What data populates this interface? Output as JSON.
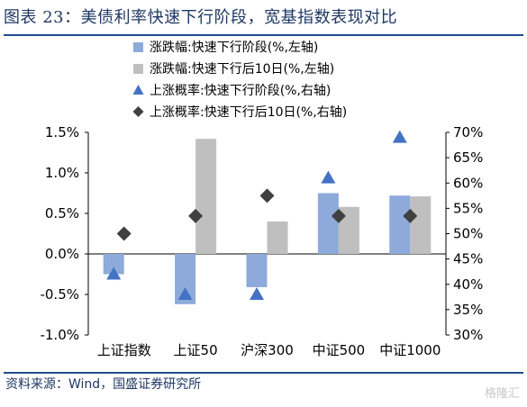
{
  "header": {
    "title": "图表 23：美债利率快速下行阶段，宽基指数表现对比",
    "source": "资料来源：Wind，国盛证券研究所",
    "watermark": "格隆汇"
  },
  "colors": {
    "bar_fast": "#8eaadb",
    "bar_after": "#bfbfbf",
    "tri": "#4472c4",
    "diamond": "#404040",
    "title": "#1f3864",
    "rule": "#1f4e8c"
  },
  "chart_data": {
    "type": "bar",
    "categories": [
      "上证指数",
      "上证50",
      "沪深300",
      "中证500",
      "中证1000"
    ],
    "series": [
      {
        "name": "涨跌幅:快速下行阶段(%,左轴)",
        "kind": "bar",
        "axis": "left",
        "values": [
          -0.25,
          -0.62,
          -0.41,
          0.75,
          0.72
        ]
      },
      {
        "name": "涨跌幅:快速下行后10日(%,左轴)",
        "kind": "bar",
        "axis": "left",
        "values": [
          0.0,
          1.42,
          0.4,
          0.58,
          0.71
        ]
      },
      {
        "name": "上涨概率:快速下行阶段(%,右轴)",
        "kind": "triangle",
        "axis": "right",
        "values": [
          42,
          38,
          38,
          61,
          69
        ]
      },
      {
        "name": "上涨概率:快速下行后10日(%,右轴)",
        "kind": "diamond",
        "axis": "right",
        "values": [
          50,
          53.5,
          57.5,
          53.5,
          53.5
        ]
      }
    ],
    "y_left": {
      "min": -1.0,
      "max": 1.5,
      "ticks": [
        "-1.0%",
        "-0.5%",
        "0.0%",
        "0.5%",
        "1.0%",
        "1.5%"
      ]
    },
    "y_right": {
      "min": 30,
      "max": 70,
      "ticks": [
        "30%",
        "35%",
        "40%",
        "45%",
        "50%",
        "55%",
        "60%",
        "65%",
        "70%"
      ]
    },
    "legend_position": "top"
  }
}
